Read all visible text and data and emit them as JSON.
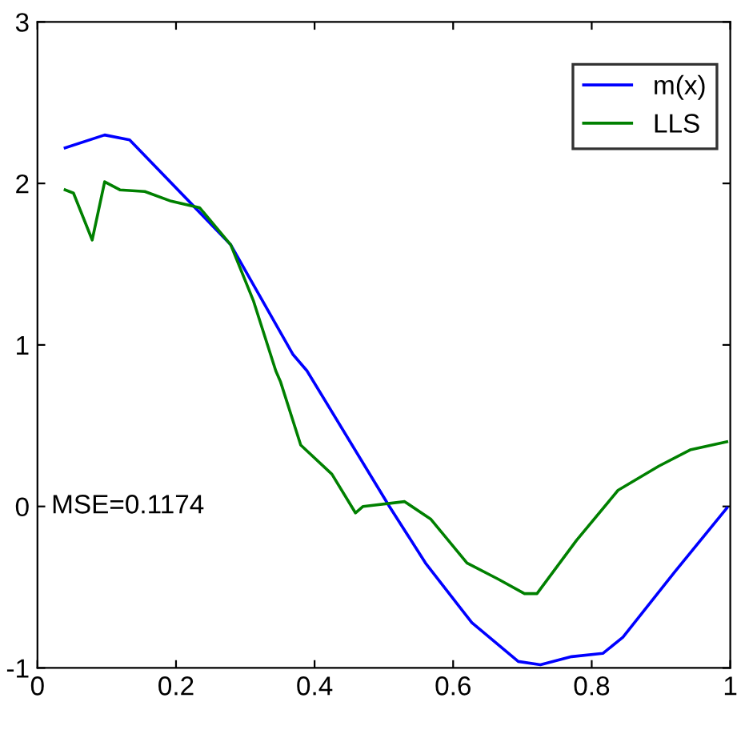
{
  "chart_data": {
    "type": "line",
    "xlim": [
      0,
      1
    ],
    "ylim": [
      -1,
      3
    ],
    "xticks": [
      0,
      0.2,
      0.4,
      0.6,
      0.8,
      1
    ],
    "yticks": [
      -1,
      0,
      1,
      2,
      3
    ],
    "grid": false,
    "legend": "top right",
    "marker": "none",
    "line_style": "solid",
    "annotations": [
      "MSE=0.1174"
    ],
    "series": [
      {
        "name": "m(x)",
        "color": "#0000ff",
        "x": [
          0.04,
          0.097,
          0.133,
          0.223,
          0.279,
          0.369,
          0.389,
          0.508,
          0.56,
          0.627,
          0.694,
          0.726,
          0.771,
          0.816,
          0.845,
          0.919,
          0.995
        ],
        "values": [
          2.22,
          2.3,
          2.27,
          1.87,
          1.62,
          0.94,
          0.84,
          0.0,
          -0.35,
          -0.72,
          -0.96,
          -0.98,
          -0.93,
          -0.91,
          -0.81,
          -0.41,
          -0.01
        ]
      },
      {
        "name": "LLS",
        "color": "#008000",
        "x": [
          0.04,
          0.052,
          0.079,
          0.097,
          0.119,
          0.155,
          0.193,
          0.234,
          0.279,
          0.312,
          0.344,
          0.351,
          0.38,
          0.425,
          0.459,
          0.47,
          0.53,
          0.568,
          0.62,
          0.665,
          0.703,
          0.721,
          0.778,
          0.838,
          0.897,
          0.942,
          0.995
        ],
        "values": [
          1.96,
          1.94,
          1.65,
          2.01,
          1.96,
          1.95,
          1.89,
          1.85,
          1.62,
          1.27,
          0.84,
          0.77,
          0.38,
          0.2,
          -0.04,
          0.0,
          0.03,
          -0.08,
          -0.35,
          -0.45,
          -0.54,
          -0.54,
          -0.21,
          0.1,
          0.25,
          0.35,
          0.4
        ]
      }
    ]
  }
}
